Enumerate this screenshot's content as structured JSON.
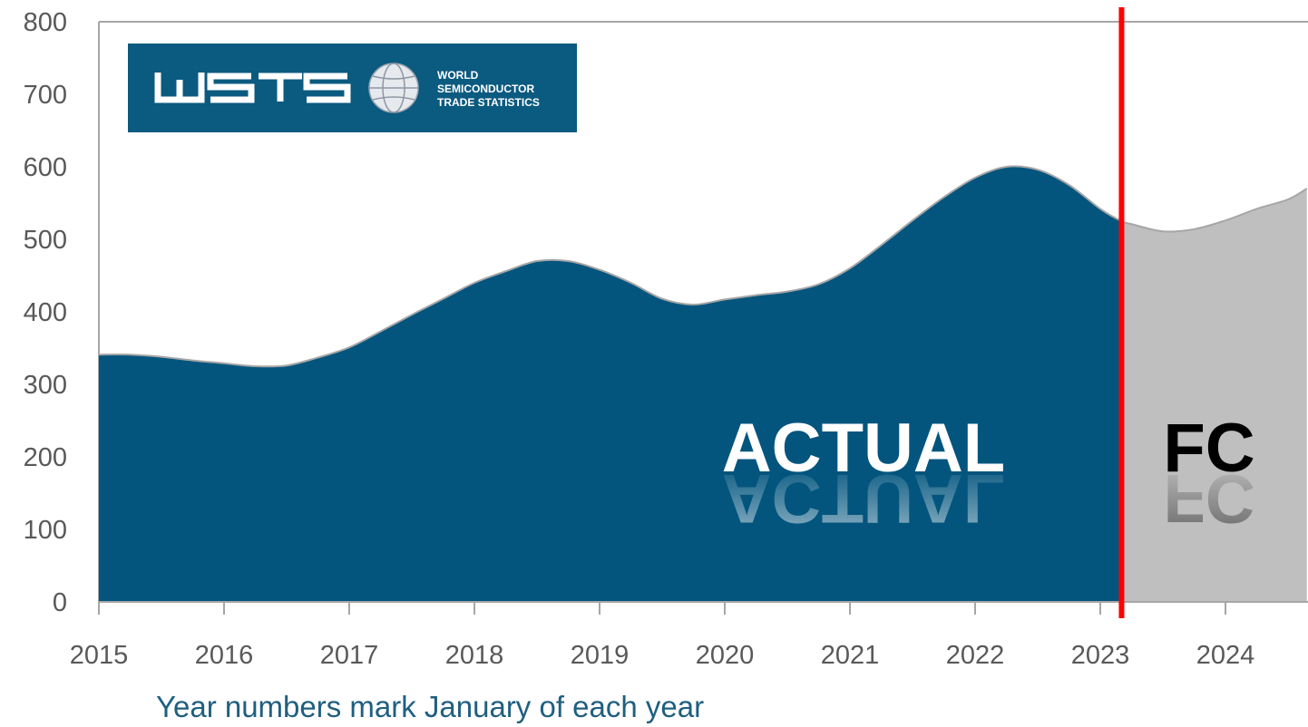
{
  "chart_data": {
    "type": "area",
    "x": [
      2015.0,
      2015.25,
      2015.5,
      2015.75,
      2016.0,
      2016.25,
      2016.5,
      2016.75,
      2017.0,
      2017.25,
      2017.5,
      2017.75,
      2018.0,
      2018.25,
      2018.5,
      2018.75,
      2019.0,
      2019.25,
      2019.5,
      2019.75,
      2020.0,
      2020.25,
      2020.5,
      2020.75,
      2021.0,
      2021.25,
      2021.5,
      2021.75,
      2022.0,
      2022.25,
      2022.5,
      2022.75,
      2023.0,
      2023.17,
      2023.25,
      2023.5,
      2023.75,
      2024.0,
      2024.25,
      2024.5,
      2024.65
    ],
    "series": [
      {
        "values": [
          341,
          341,
          338,
          333,
          329,
          325,
          326,
          337,
          351,
          373,
          396,
          418,
          440,
          456,
          470,
          470,
          458,
          440,
          418,
          410,
          417,
          423,
          428,
          438,
          460,
          492,
          526,
          558,
          585,
          600,
          596,
          575,
          542,
          525,
          521,
          511,
          514,
          526,
          542,
          555,
          570
        ],
        "actual_until": 2023.17
      }
    ],
    "forecast_start": 2023.17,
    "xlim": [
      2015,
      2024.65
    ],
    "ylim": [
      0,
      800
    ],
    "yticks": [
      "0",
      "100",
      "200",
      "300",
      "400",
      "500",
      "600",
      "700",
      "800"
    ],
    "xticks": [
      "2015",
      "2016",
      "2017",
      "2018",
      "2019",
      "2020",
      "2021",
      "2022",
      "2023",
      "2024"
    ],
    "annotations": {
      "actual": "ACTUAL",
      "forecast": "FC",
      "note": "Year numbers mark January of each year"
    },
    "logo": {
      "wordmark": "WSTS",
      "line1": "WORLD",
      "line2": "SEMICONDUCTOR",
      "line3": "TRADE STATISTICS"
    },
    "colors": {
      "actual_fill": "#03557e",
      "forecast_fill": "#bfbfbf",
      "divider": "#ff0000",
      "outline": "#a6a6a6",
      "note": "#1f5f80",
      "logo_bg": "#0b5a80"
    },
    "grid": false
  }
}
